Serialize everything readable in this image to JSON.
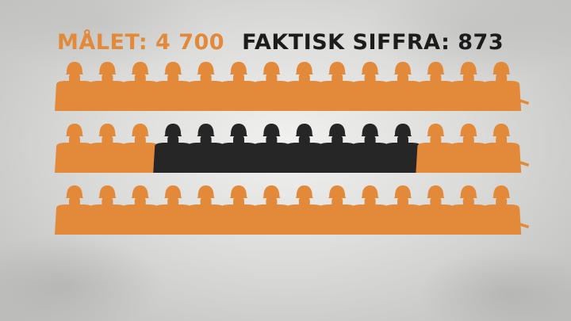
{
  "header": {
    "goal_text": "MÅLET: 4 700",
    "actual_text": "FAKTISK SIFFRA: 873"
  },
  "colors": {
    "goal": "#e3893a",
    "actual": "#262626"
  },
  "icon": "soldier-icon",
  "chart_data": {
    "type": "pictogram",
    "title": "",
    "categories": [
      "MÅLET",
      "FAKTISK SIFFRA"
    ],
    "values": [
      4700,
      873
    ],
    "rows": 3,
    "columns": 14,
    "total_icons": 42,
    "highlighted_icons": 8,
    "highlight_start": {
      "row": 2,
      "column": 4
    }
  }
}
